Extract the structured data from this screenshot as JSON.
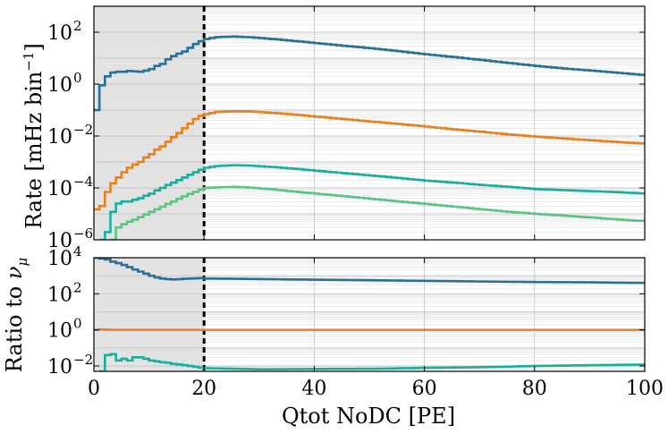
{
  "chart_data": [
    {
      "panel": "top",
      "type": "step-line",
      "ylabel_text": "Rate [mHz bin",
      "ylabel_sup": "−1",
      "ylabel_close": "]",
      "yscale": "log",
      "ylim": [
        1e-06,
        1000
      ],
      "xlim": [
        0,
        100
      ],
      "shaded_region": [
        0,
        20
      ],
      "threshold": 20,
      "y_ticks": [
        {
          "value": 1e-06,
          "base": "10",
          "exp": "−6"
        },
        {
          "value": 0.0001,
          "base": "10",
          "exp": "−4"
        },
        {
          "value": 0.01,
          "base": "10",
          "exp": "−2"
        },
        {
          "value": 1,
          "base": "10",
          "exp": "0"
        },
        {
          "value": 100,
          "base": "10",
          "exp": "2"
        }
      ],
      "series": [
        {
          "name": "nu_mu",
          "color": "#2a7096",
          "points": [
            [
              0,
              0.1
            ],
            [
              1,
              0.9
            ],
            [
              2,
              2
            ],
            [
              3,
              2.8
            ],
            [
              4,
              3
            ],
            [
              5,
              3
            ],
            [
              6,
              3.2
            ],
            [
              7,
              3.1
            ],
            [
              8,
              3
            ],
            [
              9,
              3.3
            ],
            [
              10,
              3.8
            ],
            [
              11,
              5
            ],
            [
              12,
              6
            ],
            [
              13,
              9
            ],
            [
              14,
              12
            ],
            [
              15,
              15
            ],
            [
              16,
              18
            ],
            [
              17,
              25
            ],
            [
              18,
              35
            ],
            [
              19,
              45
            ],
            [
              20,
              55
            ],
            [
              22,
              65
            ],
            [
              25,
              68
            ],
            [
              28,
              64
            ],
            [
              32,
              55
            ],
            [
              36,
              46
            ],
            [
              40,
              38
            ],
            [
              45,
              30
            ],
            [
              50,
              24
            ],
            [
              55,
              18.5
            ],
            [
              60,
              14
            ],
            [
              65,
              11
            ],
            [
              70,
              8.5
            ],
            [
              75,
              6.5
            ],
            [
              80,
              5
            ],
            [
              85,
              4
            ],
            [
              90,
              3.3
            ],
            [
              95,
              2.7
            ],
            [
              100,
              2.2
            ]
          ]
        },
        {
          "name": "orange",
          "color": "#e8811d",
          "points": [
            [
              0,
              1.5e-05
            ],
            [
              1,
              2e-05
            ],
            [
              2,
              7e-05
            ],
            [
              3,
              0.00015
            ],
            [
              4,
              0.00025
            ],
            [
              5,
              0.0004
            ],
            [
              6,
              0.0006
            ],
            [
              7,
              0.0008
            ],
            [
              8,
              0.001
            ],
            [
              9,
              0.0015
            ],
            [
              10,
              0.002
            ],
            [
              11,
              0.003
            ],
            [
              12,
              0.004
            ],
            [
              13,
              0.006
            ],
            [
              14,
              0.009
            ],
            [
              15,
              0.013
            ],
            [
              16,
              0.02
            ],
            [
              17,
              0.03
            ],
            [
              18,
              0.045
            ],
            [
              19,
              0.06
            ],
            [
              20,
              0.07
            ],
            [
              22,
              0.085
            ],
            [
              25,
              0.09
            ],
            [
              28,
              0.088
            ],
            [
              32,
              0.078
            ],
            [
              36,
              0.067
            ],
            [
              40,
              0.056
            ],
            [
              45,
              0.045
            ],
            [
              50,
              0.036
            ],
            [
              55,
              0.029
            ],
            [
              60,
              0.023
            ],
            [
              65,
              0.018
            ],
            [
              70,
              0.0145
            ],
            [
              75,
              0.0115
            ],
            [
              80,
              0.0095
            ],
            [
              85,
              0.008
            ],
            [
              90,
              0.0068
            ],
            [
              95,
              0.0058
            ],
            [
              100,
              0.005
            ]
          ]
        },
        {
          "name": "teal",
          "color": "#17b09c",
          "points": [
            [
              1,
              1e-06
            ],
            [
              2,
              2e-06
            ],
            [
              3,
              1.2e-05
            ],
            [
              4,
              2.5e-05
            ],
            [
              5,
              3e-05
            ],
            [
              6,
              3e-05
            ],
            [
              7,
              3.5e-05
            ],
            [
              8,
              4e-05
            ],
            [
              9,
              5e-05
            ],
            [
              10,
              6e-05
            ],
            [
              11,
              8e-05
            ],
            [
              12,
              0.0001
            ],
            [
              13,
              0.00013
            ],
            [
              14,
              0.00016
            ],
            [
              15,
              0.0002
            ],
            [
              16,
              0.00025
            ],
            [
              17,
              0.00032
            ],
            [
              18,
              0.0004
            ],
            [
              19,
              0.0005
            ],
            [
              20,
              0.0006
            ],
            [
              22,
              0.0007
            ],
            [
              25,
              0.00075
            ],
            [
              28,
              0.00072
            ],
            [
              32,
              0.00064
            ],
            [
              36,
              0.00055
            ],
            [
              40,
              0.00046
            ],
            [
              45,
              0.00037
            ],
            [
              50,
              0.0003
            ],
            [
              55,
              0.00024
            ],
            [
              60,
              0.00019
            ],
            [
              65,
              0.00016
            ],
            [
              70,
              0.00013
            ],
            [
              75,
              0.00011
            ],
            [
              80,
              9e-05
            ],
            [
              85,
              8.2e-05
            ],
            [
              90,
              7.5e-05
            ],
            [
              95,
              6.8e-05
            ],
            [
              100,
              6e-05
            ]
          ]
        },
        {
          "name": "green",
          "color": "#5cc483",
          "points": [
            [
              3,
              8e-07
            ],
            [
              4,
              3e-06
            ],
            [
              5,
              4e-06
            ],
            [
              6,
              5e-06
            ],
            [
              7,
              6e-06
            ],
            [
              8,
              7.5e-06
            ],
            [
              9,
              9.5e-06
            ],
            [
              10,
              1.2e-05
            ],
            [
              11,
              1.5e-05
            ],
            [
              12,
              1.9e-05
            ],
            [
              13,
              2.4e-05
            ],
            [
              14,
              3e-05
            ],
            [
              15,
              3.8e-05
            ],
            [
              16,
              4.7e-05
            ],
            [
              17,
              5.8e-05
            ],
            [
              18,
              7e-05
            ],
            [
              19,
              8.5e-05
            ],
            [
              20,
              0.0001
            ],
            [
              22,
              0.000105
            ],
            [
              25,
              0.00011
            ],
            [
              28,
              0.000103
            ],
            [
              32,
              8.8e-05
            ],
            [
              36,
              7.2e-05
            ],
            [
              40,
              6e-05
            ],
            [
              45,
              4.8e-05
            ],
            [
              50,
              3.8e-05
            ],
            [
              55,
              3e-05
            ],
            [
              60,
              2.4e-05
            ],
            [
              65,
              1.9e-05
            ],
            [
              70,
              1.5e-05
            ],
            [
              75,
              1.2e-05
            ],
            [
              80,
              1e-05
            ],
            [
              85,
              8.5e-06
            ],
            [
              90,
              7.2e-06
            ],
            [
              95,
              6e-06
            ],
            [
              100,
              5.2e-06
            ]
          ]
        }
      ]
    },
    {
      "panel": "bottom",
      "type": "step-line",
      "ylabel_text": "Ratio to ",
      "ylabel_sym": "ν",
      "ylabel_sub": "μ",
      "yscale": "log",
      "ylim": [
        0.005,
        10000
      ],
      "xlim": [
        0,
        100
      ],
      "xlabel": "Qtot NoDC [PE]",
      "shaded_region": [
        0,
        20
      ],
      "threshold": 20,
      "x_ticks": [
        {
          "value": 0,
          "label": "0"
        },
        {
          "value": 20,
          "label": "20"
        },
        {
          "value": 40,
          "label": "40"
        },
        {
          "value": 60,
          "label": "60"
        },
        {
          "value": 80,
          "label": "80"
        },
        {
          "value": 100,
          "label": "100"
        }
      ],
      "y_ticks": [
        {
          "value": 0.01,
          "base": "10",
          "exp": "−2"
        },
        {
          "value": 1,
          "base": "10",
          "exp": "0"
        },
        {
          "value": 100,
          "base": "10",
          "exp": "2"
        },
        {
          "value": 10000,
          "base": "10",
          "exp": "4"
        }
      ],
      "series": [
        {
          "name": "blue_ratio",
          "color": "#2a7096",
          "points": [
            [
              0,
              10000
            ],
            [
              1,
              9000
            ],
            [
              2,
              8000
            ],
            [
              3,
              6000
            ],
            [
              4,
              5000
            ],
            [
              5,
              4000
            ],
            [
              6,
              3000
            ],
            [
              7,
              2200
            ],
            [
              8,
              1700
            ],
            [
              9,
              1300
            ],
            [
              10,
              1000
            ],
            [
              11,
              800
            ],
            [
              12,
              700
            ],
            [
              13,
              650
            ],
            [
              14,
              620
            ],
            [
              15,
              640
            ],
            [
              16,
              680
            ],
            [
              17,
              700
            ],
            [
              18,
              720
            ],
            [
              19,
              740
            ],
            [
              20,
              700
            ],
            [
              25,
              680
            ],
            [
              30,
              650
            ],
            [
              40,
              600
            ],
            [
              50,
              560
            ],
            [
              60,
              520
            ],
            [
              70,
              480
            ],
            [
              80,
              450
            ],
            [
              85,
              440
            ],
            [
              90,
              430
            ],
            [
              95,
              410
            ],
            [
              100,
              400
            ]
          ]
        },
        {
          "name": "orange_ratio",
          "color": "#e8811d",
          "points": [
            [
              0,
              1.0
            ],
            [
              1,
              1.05
            ],
            [
              2,
              1.02
            ],
            [
              3,
              1.0
            ],
            [
              5,
              1.0
            ],
            [
              10,
              1.0
            ],
            [
              20,
              1.0
            ],
            [
              40,
              1.0
            ],
            [
              60,
              1.0
            ],
            [
              80,
              1.0
            ],
            [
              100,
              1.0
            ]
          ]
        },
        {
          "name": "teal_ratio",
          "color": "#17b09c",
          "points": [
            [
              1,
              0.0045
            ],
            [
              2,
              0.04
            ],
            [
              3,
              0.045
            ],
            [
              4,
              0.02
            ],
            [
              5,
              0.025
            ],
            [
              6,
              0.02
            ],
            [
              7,
              0.03
            ],
            [
              8,
              0.03
            ],
            [
              9,
              0.025
            ],
            [
              10,
              0.02
            ],
            [
              11,
              0.018
            ],
            [
              12,
              0.016
            ],
            [
              13,
              0.015
            ],
            [
              14,
              0.013
            ],
            [
              15,
              0.012
            ],
            [
              16,
              0.011
            ],
            [
              17,
              0.01
            ],
            [
              18,
              0.009
            ],
            [
              19,
              0.008
            ],
            [
              20,
              0.0075
            ],
            [
              25,
              0.007
            ],
            [
              30,
              0.0065
            ],
            [
              40,
              0.0068
            ],
            [
              50,
              0.007
            ],
            [
              60,
              0.0078
            ],
            [
              70,
              0.0085
            ],
            [
              80,
              0.01
            ],
            [
              90,
              0.011
            ],
            [
              100,
              0.012
            ]
          ]
        }
      ]
    }
  ]
}
